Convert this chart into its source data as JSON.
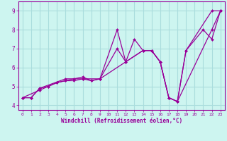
{
  "xlabel": "Windchill (Refroidissement éolien,°C)",
  "ylabel": "",
  "background_color": "#cdf5f0",
  "line_color": "#990099",
  "grid_color": "#aadddd",
  "xlim": [
    -0.5,
    23.5
  ],
  "ylim": [
    3.75,
    9.5
  ],
  "xticks": [
    0,
    1,
    2,
    3,
    4,
    5,
    6,
    7,
    8,
    9,
    10,
    11,
    12,
    13,
    14,
    15,
    16,
    17,
    18,
    19,
    20,
    21,
    22,
    23
  ],
  "yticks": [
    4,
    5,
    6,
    7,
    8,
    9
  ],
  "lines": [
    {
      "x": [
        0,
        1,
        2,
        3,
        4,
        5,
        6,
        7,
        8,
        9,
        11,
        12,
        13,
        14,
        15,
        16,
        17,
        18,
        19,
        22,
        23
      ],
      "y": [
        4.4,
        4.4,
        4.9,
        5.0,
        5.2,
        5.3,
        5.4,
        5.5,
        5.3,
        5.4,
        7.0,
        6.3,
        7.5,
        6.9,
        6.9,
        6.3,
        4.4,
        4.2,
        6.9,
        9.0,
        9.0
      ]
    },
    {
      "x": [
        0,
        2,
        3,
        4,
        5,
        6,
        7,
        8,
        9,
        11,
        12,
        14,
        15,
        16,
        17,
        18,
        19,
        21,
        22,
        23
      ],
      "y": [
        4.4,
        4.8,
        5.0,
        5.2,
        5.3,
        5.3,
        5.4,
        5.3,
        5.4,
        8.0,
        6.3,
        6.9,
        6.9,
        6.3,
        4.4,
        4.2,
        6.9,
        8.0,
        7.5,
        9.0
      ]
    },
    {
      "x": [
        0,
        1,
        2,
        5,
        6,
        7,
        9,
        14,
        15,
        16,
        17,
        18,
        22,
        23
      ],
      "y": [
        4.4,
        4.4,
        4.9,
        5.4,
        5.4,
        5.4,
        5.4,
        6.9,
        6.9,
        6.3,
        4.4,
        4.2,
        8.0,
        9.0
      ]
    }
  ]
}
